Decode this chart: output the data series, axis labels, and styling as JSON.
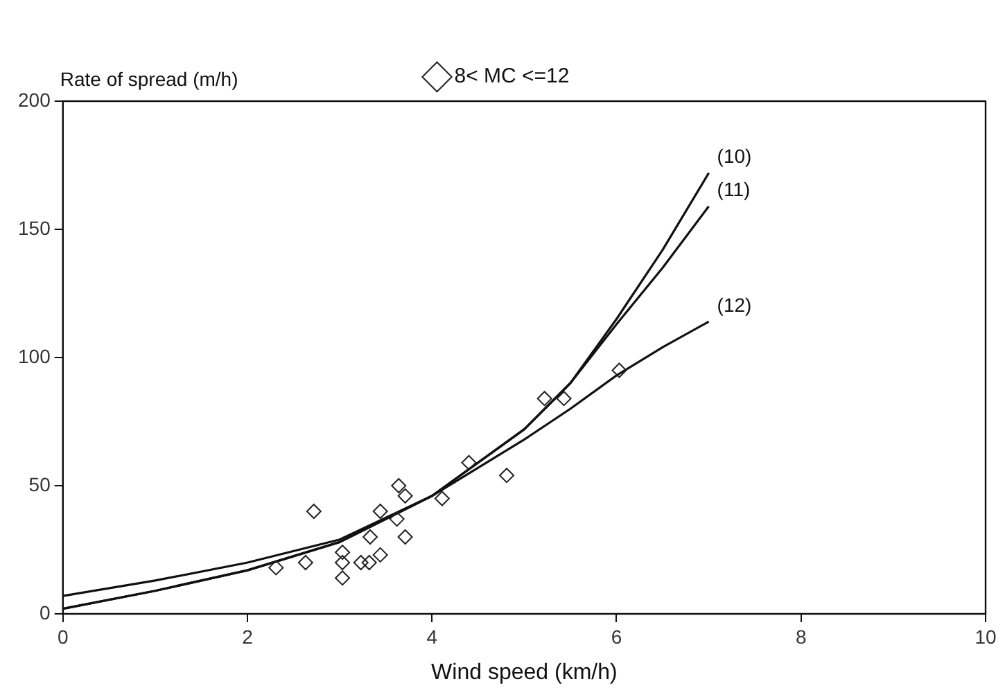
{
  "chart_data": {
    "type": "scatter",
    "xlabel": "Wind speed (km/h)",
    "ylabel": "Rate of spread (m/h)",
    "xlim": [
      0,
      10
    ],
    "ylim": [
      0,
      200
    ],
    "xticks": [
      0,
      2,
      4,
      6,
      8,
      10
    ],
    "yticks": [
      0,
      50,
      100,
      150,
      200
    ],
    "grid": false,
    "legend": "top",
    "marker": "diamond",
    "series": [
      {
        "name": "8< MC <=12",
        "color": "#222222",
        "x": [
          2.31,
          2.63,
          2.72,
          3.03,
          3.03,
          3.03,
          3.23,
          3.32,
          3.33,
          3.44,
          3.44,
          3.62,
          3.64,
          3.71,
          3.71,
          4.11,
          4.4,
          4.81,
          5.22,
          5.43,
          6.03
        ],
        "values": [
          18,
          20,
          40,
          24,
          20,
          14,
          20,
          20,
          30,
          23,
          40,
          37,
          50,
          46,
          30,
          45,
          59,
          54,
          84,
          84,
          95
        ]
      },
      {
        "name": "(10)",
        "color": "#111111",
        "type": "line",
        "marker": "none",
        "x": [
          0,
          1,
          2,
          3,
          4,
          5,
          5.5,
          6,
          6.5,
          7
        ],
        "values": [
          2,
          9,
          17,
          28,
          46,
          72,
          90,
          115,
          142,
          172
        ]
      },
      {
        "name": "(11)",
        "color": "#111111",
        "type": "line",
        "marker": "none",
        "x": [
          0,
          1,
          2,
          3,
          4,
          5,
          5.5,
          6,
          6.5,
          7
        ],
        "values": [
          2,
          9,
          17,
          28,
          46,
          72,
          90,
          113,
          135,
          159
        ]
      },
      {
        "name": "(12)",
        "color": "#111111",
        "type": "line",
        "marker": "none",
        "x": [
          0,
          1,
          2,
          3,
          4,
          5,
          5.5,
          6,
          6.5,
          7
        ],
        "values": [
          7,
          13,
          20,
          29,
          46,
          68,
          80,
          93,
          104,
          114
        ]
      }
    ]
  }
}
